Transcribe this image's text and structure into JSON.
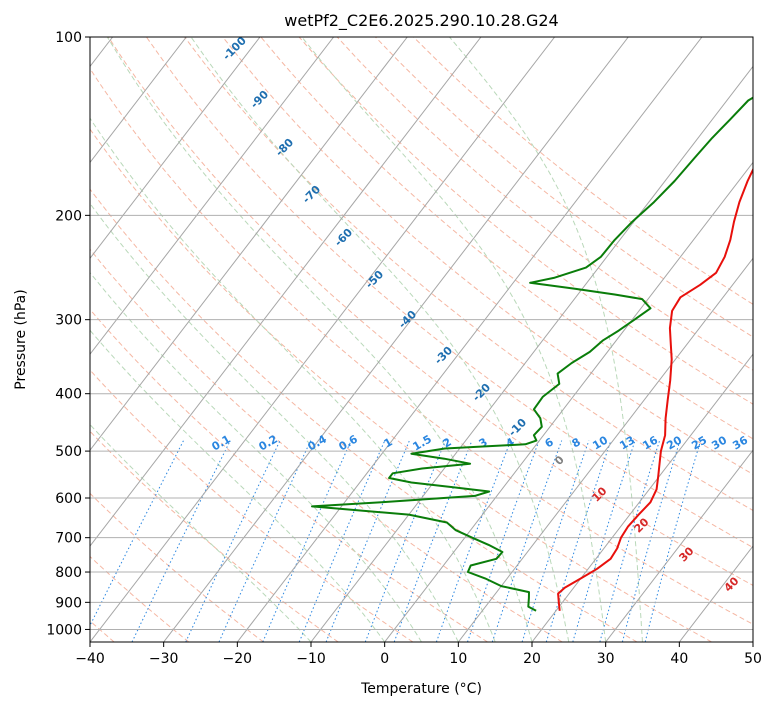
{
  "chart_data": {
    "type": "skew-t",
    "title": "wetPf2_C2E6.2025.290.10.28.G24",
    "xlabel": "Temperature (°C)",
    "ylabel": "Pressure (hPa)",
    "xlim": [
      -40,
      50
    ],
    "ylim_hpa": [
      1050,
      100
    ],
    "x_ticks": [
      -40,
      -30,
      -20,
      -10,
      0,
      10,
      20,
      30,
      40,
      50
    ],
    "x_tick_labels": [
      "−40",
      "−30",
      "−20",
      "−10",
      "0",
      "10",
      "20",
      "30",
      "40",
      "50"
    ],
    "y_ticks": [
      100,
      200,
      300,
      400,
      500,
      600,
      700,
      800,
      900,
      1000
    ],
    "y_tick_labels": [
      "100",
      "200",
      "300",
      "400",
      "500",
      "600",
      "700",
      "800",
      "900",
      "1000"
    ],
    "grid": true,
    "series": [
      {
        "name": "temperature",
        "color": "#e8100c",
        "points": [
          {
            "p": 930,
            "x": 20.5
          },
          {
            "p": 900,
            "x": 19.5
          },
          {
            "p": 870,
            "x": 18.5
          },
          {
            "p": 850,
            "x": 18.8
          },
          {
            "p": 820,
            "x": 20.0
          },
          {
            "p": 790,
            "x": 21.2
          },
          {
            "p": 760,
            "x": 22.0
          },
          {
            "p": 730,
            "x": 21.8
          },
          {
            "p": 700,
            "x": 21.2
          },
          {
            "p": 670,
            "x": 21.0
          },
          {
            "p": 640,
            "x": 21.2
          },
          {
            "p": 610,
            "x": 21.5
          },
          {
            "p": 580,
            "x": 21.0
          },
          {
            "p": 550,
            "x": 19.8
          },
          {
            "p": 520,
            "x": 18.5
          },
          {
            "p": 500,
            "x": 17.6
          },
          {
            "p": 470,
            "x": 16.5
          },
          {
            "p": 440,
            "x": 14.8
          },
          {
            "p": 410,
            "x": 13.2
          },
          {
            "p": 380,
            "x": 11.5
          },
          {
            "p": 350,
            "x": 9.5
          },
          {
            "p": 330,
            "x": 7.8
          },
          {
            "p": 310,
            "x": 6.0
          },
          {
            "p": 290,
            "x": 4.5
          },
          {
            "p": 275,
            "x": 4.2
          },
          {
            "p": 262,
            "x": 5.6
          },
          {
            "p": 250,
            "x": 6.5
          },
          {
            "p": 235,
            "x": 6.0
          },
          {
            "p": 220,
            "x": 5.0
          },
          {
            "p": 205,
            "x": 3.6
          },
          {
            "p": 190,
            "x": 2.3
          },
          {
            "p": 175,
            "x": 1.2
          },
          {
            "p": 160,
            "x": 0.3
          },
          {
            "p": 150,
            "x": 1.4
          },
          {
            "p": 140,
            "x": 3.4
          },
          {
            "p": 130,
            "x": 5.3
          },
          {
            "p": 120,
            "x": 5.6
          },
          {
            "p": 113,
            "x": 7.2
          },
          {
            "p": 106,
            "x": 11.2
          },
          {
            "p": 100,
            "x": 15.7
          }
        ]
      },
      {
        "name": "dewpoint",
        "color": "#0a7d0a",
        "points": [
          {
            "p": 930,
            "x": 17.3
          },
          {
            "p": 915,
            "x": 15.8
          },
          {
            "p": 900,
            "x": 15.4
          },
          {
            "p": 885,
            "x": 15.0
          },
          {
            "p": 865,
            "x": 14.4
          },
          {
            "p": 845,
            "x": 10.0
          },
          {
            "p": 820,
            "x": 7.0
          },
          {
            "p": 800,
            "x": 4.0
          },
          {
            "p": 780,
            "x": 3.7
          },
          {
            "p": 760,
            "x": 6.5
          },
          {
            "p": 740,
            "x": 6.6
          },
          {
            "p": 720,
            "x": 4.0
          },
          {
            "p": 700,
            "x": 1.0
          },
          {
            "p": 680,
            "x": -2.0
          },
          {
            "p": 660,
            "x": -4.0
          },
          {
            "p": 640,
            "x": -10.0
          },
          {
            "p": 620,
            "x": -24.0
          },
          {
            "p": 610,
            "x": -15.0
          },
          {
            "p": 595,
            "x": -3.0
          },
          {
            "p": 585,
            "x": -1.5
          },
          {
            "p": 575,
            "x": -7.0
          },
          {
            "p": 565,
            "x": -13.0
          },
          {
            "p": 555,
            "x": -16.5
          },
          {
            "p": 545,
            "x": -16.5
          },
          {
            "p": 535,
            "x": -13.0
          },
          {
            "p": 525,
            "x": -7.0
          },
          {
            "p": 515,
            "x": -11.0
          },
          {
            "p": 505,
            "x": -16.0
          },
          {
            "p": 495,
            "x": -12.0
          },
          {
            "p": 487,
            "x": -1.5
          },
          {
            "p": 480,
            "x": -0.4
          },
          {
            "p": 470,
            "x": -1.3
          },
          {
            "p": 455,
            "x": -1.1
          },
          {
            "p": 440,
            "x": -2.2
          },
          {
            "p": 425,
            "x": -4.0
          },
          {
            "p": 405,
            "x": -4.1
          },
          {
            "p": 385,
            "x": -3.2
          },
          {
            "p": 370,
            "x": -4.5
          },
          {
            "p": 355,
            "x": -3.7
          },
          {
            "p": 340,
            "x": -2.4
          },
          {
            "p": 325,
            "x": -1.8
          },
          {
            "p": 313,
            "x": -0.7
          },
          {
            "p": 300,
            "x": 0.3
          },
          {
            "p": 287,
            "x": 1.3
          },
          {
            "p": 277,
            "x": -0.8
          },
          {
            "p": 272,
            "x": -5.0
          },
          {
            "p": 266,
            "x": -11.0
          },
          {
            "p": 260,
            "x": -17.7
          },
          {
            "p": 255,
            "x": -15.0
          },
          {
            "p": 245,
            "x": -11.7
          },
          {
            "p": 235,
            "x": -10.8
          },
          {
            "p": 220,
            "x": -10.7
          },
          {
            "p": 205,
            "x": -10.2
          },
          {
            "p": 190,
            "x": -9.3
          },
          {
            "p": 175,
            "x": -8.7
          },
          {
            "p": 160,
            "x": -8.4
          },
          {
            "p": 148,
            "x": -8.1
          },
          {
            "p": 138,
            "x": -7.6
          },
          {
            "p": 128,
            "x": -7.1
          },
          {
            "p": 120,
            "x": -5.0
          },
          {
            "p": 112,
            "x": -2.7
          },
          {
            "p": 105,
            "x": -0.2
          },
          {
            "p": 100,
            "x": 2.1
          }
        ]
      }
    ],
    "dry_adiabat_labels": [
      "-100",
      "-90",
      "-80",
      "-70",
      "-60",
      "-50",
      "-40",
      "-30",
      "-20",
      "-10",
      "0",
      "10",
      "20",
      "30",
      "40"
    ],
    "mixing_ratio_labels": [
      "0.1",
      "0.2",
      "0.4",
      "0.6",
      "1",
      "1.5",
      "2",
      "3",
      "4",
      "6",
      "8",
      "10",
      "13",
      "16",
      "20",
      "25",
      "30",
      "36"
    ]
  },
  "colors": {
    "isobar": "#b0b0b0",
    "isotherm": "#a6a6a6",
    "dry_adiabat": "#f5b7a3",
    "moist_adiabat": "#b9d8b9",
    "mixing_ratio": "#2a86e0",
    "dry_label_cold": "#1f6fb0",
    "dry_label_warm": "#d62828",
    "mixing_label": "#2a86e0"
  }
}
